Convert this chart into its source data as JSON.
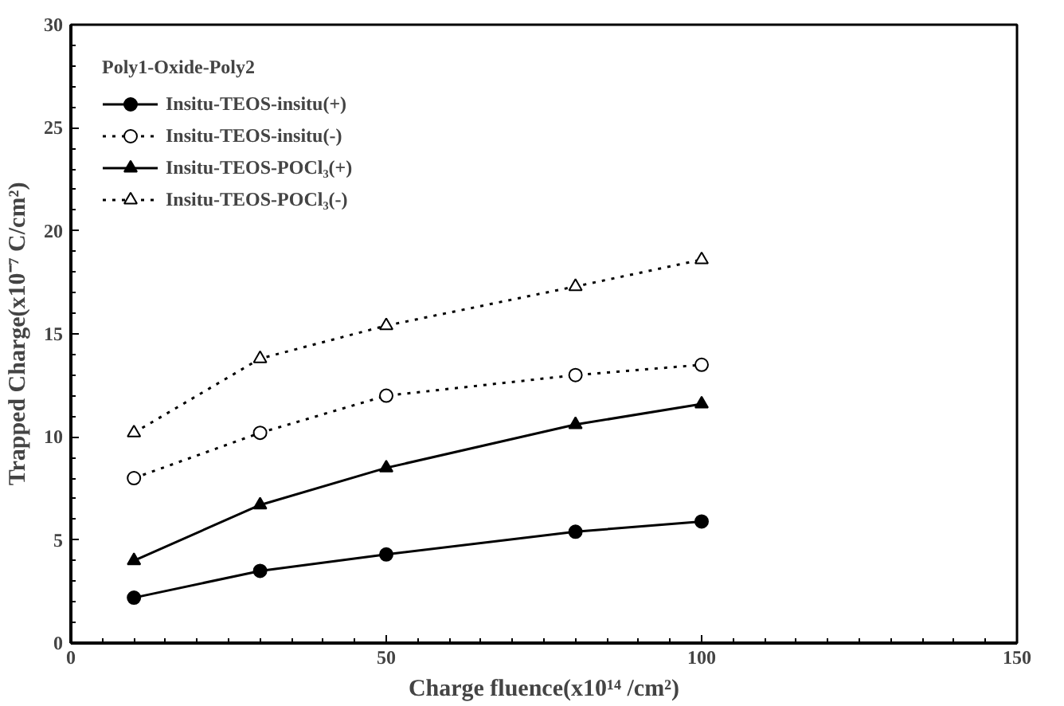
{
  "chart_data": {
    "type": "line",
    "xlabel": "Charge fluence(x10¹⁴ /cm²)",
    "ylabel": "Trapped Charge(x10⁻⁷ C/cm²)",
    "legend_title": "Poly1-Oxide-Poly2",
    "x": [
      10,
      30,
      50,
      80,
      100
    ],
    "series": [
      {
        "name": "Insitu-TEOS-insitu(+)",
        "color": "#000000",
        "values": [
          2.2,
          3.5,
          4.3,
          5.4,
          5.9
        ],
        "marker": "circle",
        "line_style": "solid"
      },
      {
        "name": "Insitu-TEOS-insitu(-)",
        "color": "#000000",
        "values": [
          8.0,
          10.2,
          12.0,
          13.0,
          13.5
        ],
        "marker": "circle",
        "line_style": "dotted"
      },
      {
        "name": "Insitu-TEOS-POCl₃(+)",
        "color": "#000000",
        "values": [
          4.0,
          6.7,
          8.5,
          10.6,
          11.6
        ],
        "marker": "triangle",
        "line_style": "solid"
      },
      {
        "name": "Insitu-TEOS-POCl₃(-)",
        "color": "#000000",
        "values": [
          10.2,
          13.8,
          15.4,
          17.3,
          18.6
        ],
        "marker": "triangle",
        "line_style": "dotted"
      }
    ],
    "xlim": [
      0,
      150
    ],
    "xticks": [
      0,
      50,
      100,
      150
    ],
    "ylim": [
      0,
      30
    ],
    "yticks": [
      0,
      5,
      10,
      15,
      20,
      25,
      30
    ],
    "grid": false,
    "legend": "top left"
  }
}
